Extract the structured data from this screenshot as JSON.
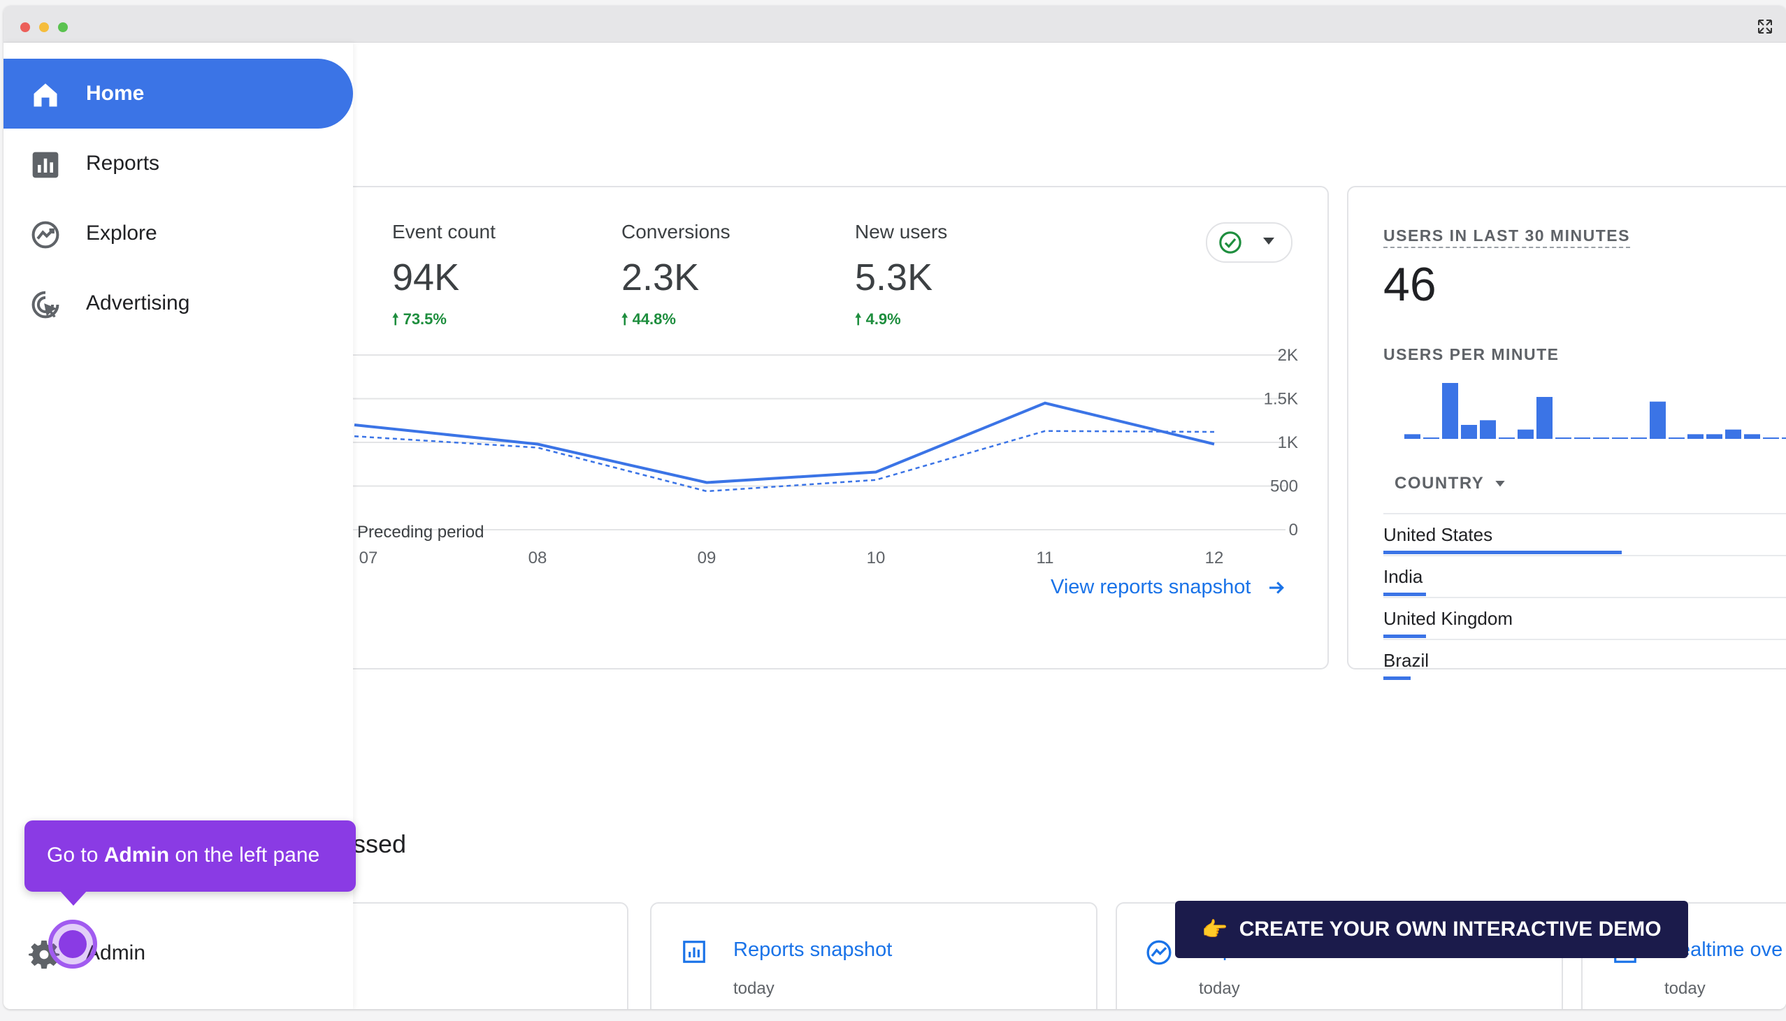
{
  "sidebar": {
    "items": [
      {
        "label": "Home",
        "icon": "home-icon",
        "active": true
      },
      {
        "label": "Reports",
        "icon": "bar-chart-icon",
        "active": false
      },
      {
        "label": "Explore",
        "icon": "explore-icon",
        "active": false
      },
      {
        "label": "Advertising",
        "icon": "advertising-icon",
        "active": false
      }
    ],
    "admin_label": "Admin"
  },
  "metrics": [
    {
      "label": "Event count",
      "value": "94K",
      "change": "73.5%"
    },
    {
      "label": "Conversions",
      "value": "2.3K",
      "change": "44.8%"
    },
    {
      "label": "New users",
      "value": "5.3K",
      "change": "4.9%"
    }
  ],
  "legend": {
    "preceding": "Preceding period"
  },
  "view_reports_link": "View reports snapshot",
  "chart_data": {
    "type": "line",
    "x": [
      "07",
      "08",
      "09",
      "10",
      "11",
      "12"
    ],
    "y_ticks": [
      "2K",
      "1.5K",
      "1K",
      "500",
      "0"
    ],
    "ylim": [
      0,
      2000
    ],
    "series": [
      {
        "values": [
          1200,
          980,
          540,
          660,
          1450,
          980
        ]
      },
      {
        "name": "Preceding period",
        "values": [
          1070,
          940,
          440,
          570,
          1130,
          1120
        ]
      }
    ],
    "colors": {
      "current": "#3b74e6",
      "preceding": "#3b74e6"
    }
  },
  "realtime": {
    "title": "USERS IN LAST 30 MINUTES",
    "count": "46",
    "per_minute_label": "USERS PER MINUTE",
    "bars": [
      1,
      0,
      12,
      3,
      4,
      0,
      2,
      9,
      0,
      0,
      0,
      0,
      0,
      8,
      0,
      1,
      1,
      2,
      1,
      0,
      0,
      0,
      2
    ],
    "country_label": "COUNTRY",
    "countries": [
      {
        "name": "United States",
        "share": 0.62
      },
      {
        "name": "India",
        "share": 0.11
      },
      {
        "name": "United Kingdom",
        "share": 0.11
      },
      {
        "name": "Brazil",
        "share": 0.07
      }
    ]
  },
  "recent": {
    "section_title_partial": "ssed",
    "cards": [
      {
        "title": "Reports snapshot",
        "time": "today",
        "icon": "reports-icon"
      },
      {
        "title": "Explore",
        "time": "today",
        "icon": "explore-icon"
      },
      {
        "title": "Realtime ove",
        "time": "today",
        "icon": "realtime-icon"
      }
    ]
  },
  "tooltip": {
    "prefix": "Go to ",
    "bold": "Admin",
    "suffix": " on the left pane"
  },
  "banner": {
    "emoji": "👉",
    "text": "CREATE YOUR OWN INTERACTIVE DEMO"
  }
}
